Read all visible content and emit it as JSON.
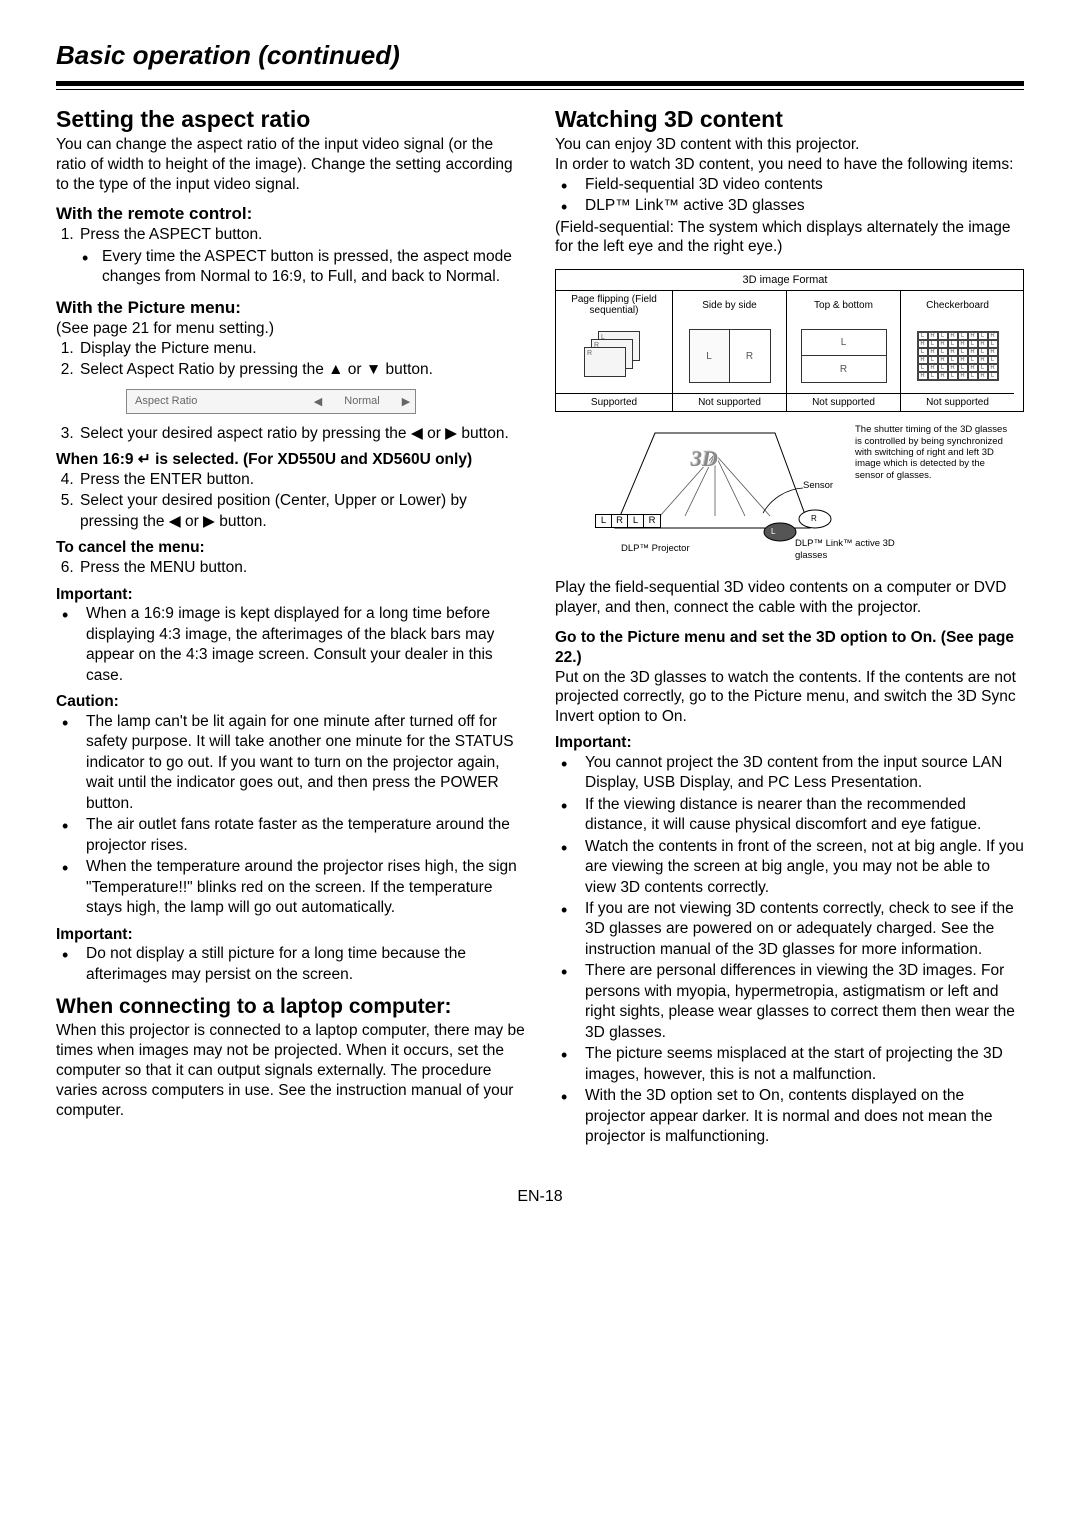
{
  "header": {
    "title": "Basic operation (continued)"
  },
  "left": {
    "aspect": {
      "heading": "Setting the aspect ratio",
      "intro": "You can change the aspect ratio of the input video signal (or the ratio of width to height of the image). Change the setting according to the type of the input video signal.",
      "remote_head": "With the remote control:",
      "remote_step1": "Press the ASPECT button.",
      "remote_step1_bullet": "Every time the ASPECT button is pressed, the aspect mode changes from Normal to 16:9, to Full, and back to Normal.",
      "picmenu_head": "With the Picture menu:",
      "picmenu_sub": "(See page 21 for menu setting.)",
      "picmenu_step1": "Display the Picture menu.",
      "picmenu_step2": "Select Aspect Ratio by pressing the ▲ or ▼ button.",
      "menu_strip": {
        "label": "Aspect Ratio",
        "value": "Normal"
      },
      "picmenu_step3": "Select your desired aspect ratio by pressing the ◀ or ▶ button.",
      "when169_head": "When 16:9 ↵ is selected. (For XD550U and XD560U only)",
      "when169_step4": "Press the ENTER button.",
      "when169_step5": "Select your desired position (Center, Upper or Lower) by pressing the ◀ or ▶ button.",
      "cancel_head": "To cancel the menu:",
      "cancel_step6": "Press the MENU button.",
      "important_head": "Important:",
      "important_bullet": "When a 16:9 image is kept displayed for a long time before displaying 4:3 image, the afterimages of the black bars may appear on the 4:3 image screen. Consult your dealer in this case.",
      "caution_head": "Caution:",
      "caution_b1": "The lamp can't be lit again for one minute after turned off for safety purpose. It will take another one minute for the STATUS indicator to go out. If you want to turn on the projector again, wait until the indicator goes out, and then press the POWER button.",
      "caution_b2": "The air outlet fans rotate faster as the temperature around the projector rises.",
      "caution_b3": "When the temperature around the projector rises high, the sign \"Temperature!!\" blinks red on the screen. If the temperature stays high, the lamp will go out automatically.",
      "important2_head": "Important:",
      "important2_bullet": "Do not display a still picture for a long time because the afterimages may persist on the screen."
    },
    "laptop": {
      "heading": "When connecting to a laptop computer:",
      "text": "When this projector is connected to a laptop computer, there may be times when images may not be projected. When it occurs, set the computer so that it can output signals externally. The procedure varies across computers in use. See the instruction manual of your computer."
    }
  },
  "right": {
    "heading": "Watching 3D content",
    "intro_line1": "You can enjoy 3D content with this projector.",
    "intro_line2": "In order to watch 3D content, you need to have the following items:",
    "need_b1": "Field-sequential 3D video contents",
    "need_b2": "DLP™ Link™ active 3D glasses",
    "fieldseq_note": "(Field-sequential: The system which displays alternately the image for the left eye and the right eye.)",
    "fmt": {
      "title": "3D image Format",
      "c0": "Page flipping (Field sequential)",
      "c1": "Side by side",
      "c2": "Top & bottom",
      "c3": "Checkerboard",
      "f0": "Supported",
      "f1": "Not supported",
      "f2": "Not supported",
      "f3": "Not supported",
      "sbs_l": "L",
      "sbs_r": "R",
      "tb_l": "L",
      "tb_r": "R"
    },
    "diagram": {
      "projector": "DLP™ Projector",
      "sensor": "Sensor",
      "glasses": "DLP™ Link™ active 3D glasses",
      "sync_text": "The shutter timing of the 3D glasses is controlled by being synchronized with switching of right and left 3D image which is detected by the sensor of glasses.",
      "seq": [
        "L",
        "R",
        "L",
        "R"
      ],
      "screen_logo": "3D",
      "l_label": "L",
      "r_label": "R"
    },
    "play_text": "Play the field-sequential 3D video contents on a computer or DVD player, and then, connect the cable with the projector.",
    "goto_head": "Go to the Picture menu and set the 3D option to On. (See page 22.)",
    "puton_text": "Put on the 3D glasses to watch the contents. If the contents are not projected correctly, go to the Picture menu, and switch the 3D Sync Invert option to On.",
    "important_head": "Important:",
    "imp_b1": "You cannot project the 3D content from the input source LAN Display, USB Display, and PC Less Presentation.",
    "imp_b2": "If the viewing distance is nearer than the recommended distance, it will cause physical discomfort and eye fatigue.",
    "imp_b3": "Watch the contents in front of the screen, not at big angle. If you are viewing the screen at big angle, you may not be able to view 3D contents correctly.",
    "imp_b4": "If you are not viewing 3D contents correctly, check to see if the 3D glasses are powered on or adequately charged. See the instruction manual of the 3D glasses for more information.",
    "imp_b5": "There are personal differences in viewing the 3D images. For persons with myopia, hypermetropia, astigmatism or left and right sights, please wear glasses to correct them then wear the 3D glasses.",
    "imp_b6": "The picture seems misplaced at the start of projecting the 3D images, however, this is not a malfunction.",
    "imp_b7": "With the 3D option set to On, contents displayed on the projector appear darker. It is normal and does not mean the projector is malfunctioning."
  },
  "footer": {
    "page": "EN-18"
  }
}
